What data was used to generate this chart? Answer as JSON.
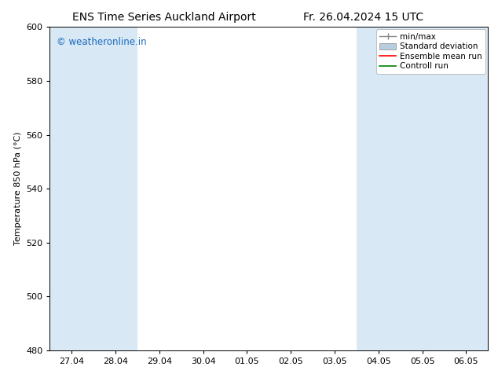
{
  "title_left": "ENS Time Series Auckland Airport",
  "title_right": "Fr. 26.04.2024 15 UTC",
  "ylabel": "Temperature 850 hPa (°C)",
  "watermark": "© weatheronline.in",
  "watermark_color": "#1a6abf",
  "ylim": [
    480,
    600
  ],
  "yticks": [
    480,
    500,
    520,
    540,
    560,
    580,
    600
  ],
  "xtick_labels": [
    "27.04",
    "28.04",
    "29.04",
    "30.04",
    "01.05",
    "02.05",
    "03.05",
    "04.05",
    "05.05",
    "06.05"
  ],
  "shaded_color": "#d8e8f5",
  "background_color": "#ffffff",
  "plot_bg_color": "#ffffff",
  "legend_entries": [
    {
      "label": "min/max"
    },
    {
      "label": "Standard deviation"
    },
    {
      "label": "Ensemble mean run",
      "color": "#ff0000"
    },
    {
      "label": "Controll run",
      "color": "#008000"
    }
  ],
  "title_fontsize": 10,
  "tick_label_fontsize": 8,
  "ylabel_fontsize": 8,
  "legend_fontsize": 7.5
}
